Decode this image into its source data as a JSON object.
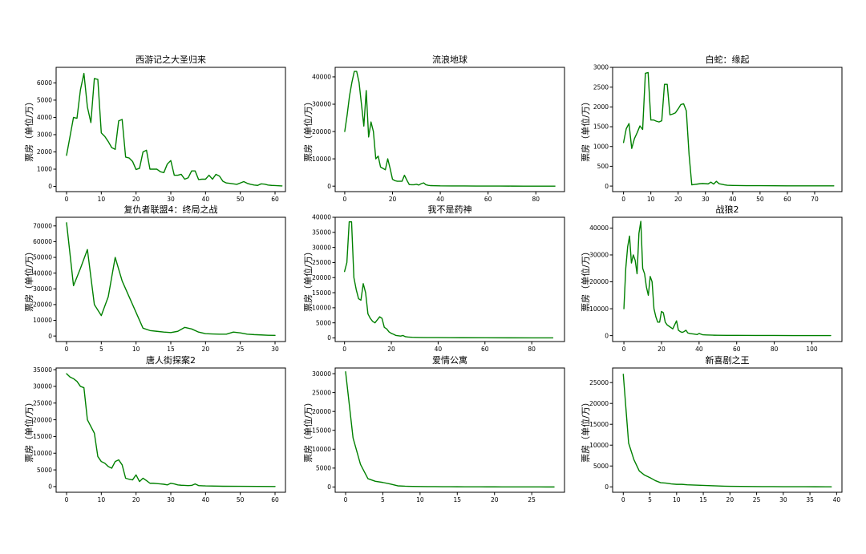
{
  "colors": {
    "line": "#008000",
    "axis": "#000000",
    "background": "#ffffff"
  },
  "chart_data": [
    {
      "type": "line",
      "title": "西游记之大圣归来",
      "ylabel": "票房（单位/万）",
      "xlabel": "",
      "xlim": [
        -3,
        63
      ],
      "ylim": [
        -300,
        6900
      ],
      "xticks": [
        0,
        10,
        20,
        30,
        40,
        50,
        60
      ],
      "yticks": [
        0,
        1000,
        2000,
        3000,
        4000,
        5000,
        6000
      ],
      "series": [
        {
          "x": [
            0,
            1,
            2,
            3,
            4,
            5,
            6,
            7,
            8,
            9,
            10,
            11,
            12,
            13,
            14,
            15,
            16,
            17,
            18,
            19,
            20,
            21,
            22,
            23,
            24,
            25,
            26,
            27,
            28,
            29,
            30,
            31,
            32,
            33,
            34,
            35,
            36,
            37,
            38,
            39,
            40,
            41,
            42,
            43,
            44,
            45,
            46,
            47,
            48,
            49,
            50,
            51,
            52,
            53,
            54,
            55,
            56,
            57,
            58,
            59,
            60,
            61,
            62
          ],
          "y": [
            1800,
            2900,
            4000,
            3950,
            5600,
            6550,
            4600,
            3700,
            6250,
            6200,
            3100,
            2900,
            2600,
            2250,
            2150,
            3800,
            3880,
            1700,
            1650,
            1450,
            980,
            1050,
            2000,
            2100,
            1000,
            1000,
            1000,
            850,
            800,
            1300,
            1500,
            650,
            650,
            700,
            420,
            500,
            900,
            900,
            400,
            420,
            420,
            650,
            420,
            700,
            600,
            300,
            200,
            180,
            150,
            120,
            200,
            280,
            180,
            120,
            80,
            60,
            150,
            130,
            80,
            60,
            50,
            40,
            30
          ]
        }
      ]
    },
    {
      "type": "line",
      "title": "流浪地球",
      "ylabel": "票房（单位/万）",
      "xlabel": "",
      "xlim": [
        -4,
        92
      ],
      "ylim": [
        -2000,
        43500
      ],
      "xticks": [
        0,
        20,
        40,
        60,
        80
      ],
      "yticks": [
        0,
        10000,
        20000,
        30000,
        40000
      ],
      "series": [
        {
          "x": [
            0,
            1,
            2,
            3,
            4,
            5,
            6,
            7,
            8,
            9,
            10,
            11,
            12,
            13,
            14,
            15,
            16,
            17,
            18,
            19,
            20,
            21,
            22,
            23,
            24,
            25,
            26,
            27,
            28,
            29,
            30,
            31,
            32,
            33,
            34,
            35,
            36,
            38,
            40,
            45,
            50,
            55,
            60,
            65,
            70,
            75,
            80,
            85,
            88
          ],
          "y": [
            20000,
            26000,
            33000,
            38000,
            42000,
            42000,
            38000,
            30000,
            22000,
            35000,
            18000,
            23500,
            20000,
            10000,
            11000,
            7000,
            6500,
            6000,
            10000,
            6500,
            2500,
            2000,
            1800,
            1800,
            1800,
            4000,
            2200,
            600,
            500,
            500,
            700,
            400,
            900,
            1200,
            500,
            300,
            200,
            150,
            100,
            80,
            60,
            50,
            40,
            30,
            20,
            15,
            10,
            8,
            5
          ]
        }
      ]
    },
    {
      "type": "line",
      "title": "白蛇：缘起",
      "ylabel": "票房（单位/万）",
      "xlabel": "",
      "xlim": [
        -4,
        80
      ],
      "ylim": [
        -140,
        3000
      ],
      "xticks": [
        0,
        10,
        20,
        30,
        40,
        50,
        60,
        70
      ],
      "yticks": [
        0,
        500,
        1000,
        1500,
        2000,
        2500,
        3000
      ],
      "series": [
        {
          "x": [
            0,
            1,
            2,
            3,
            4,
            5,
            6,
            7,
            8,
            9,
            10,
            11,
            12,
            13,
            14,
            15,
            16,
            17,
            18,
            19,
            20,
            21,
            22,
            23,
            24,
            25,
            26,
            27,
            28,
            29,
            30,
            31,
            32,
            33,
            34,
            35,
            36,
            37,
            38,
            40,
            45,
            50,
            55,
            60,
            65,
            70,
            75,
            77
          ],
          "y": [
            1100,
            1450,
            1580,
            950,
            1200,
            1350,
            1520,
            1430,
            2850,
            2870,
            1670,
            1670,
            1640,
            1620,
            1650,
            2570,
            2570,
            1800,
            1820,
            1850,
            1950,
            2060,
            2080,
            1900,
            800,
            30,
            40,
            50,
            60,
            65,
            60,
            55,
            100,
            50,
            120,
            60,
            45,
            30,
            20,
            15,
            10,
            10,
            8,
            6,
            5,
            5,
            5,
            5
          ]
        }
      ]
    },
    {
      "type": "line",
      "title": "复仇者联盟4：终局之战",
      "ylabel": "票房（单位/万）",
      "xlabel": "",
      "xlim": [
        -1.5,
        31.5
      ],
      "ylim": [
        -3500,
        75500
      ],
      "xticks": [
        0,
        5,
        10,
        15,
        20,
        25,
        30
      ],
      "yticks": [
        0,
        10000,
        20000,
        30000,
        40000,
        50000,
        60000,
        70000
      ],
      "series": [
        {
          "x": [
            0,
            1,
            2,
            3,
            4,
            5,
            6,
            7,
            8,
            9,
            10,
            11,
            12,
            13,
            14,
            15,
            16,
            17,
            18,
            19,
            20,
            21,
            22,
            23,
            24,
            25,
            26,
            27,
            28,
            29,
            30
          ],
          "y": [
            72000,
            32000,
            43000,
            55000,
            20000,
            13000,
            25000,
            50000,
            35000,
            25000,
            15000,
            5000,
            3500,
            3000,
            2500,
            2200,
            3000,
            5500,
            4500,
            2500,
            1500,
            1300,
            1200,
            1200,
            2500,
            2000,
            1200,
            900,
            700,
            500,
            400
          ]
        }
      ]
    },
    {
      "type": "line",
      "title": "我不是药神",
      "ylabel": "票房（单位/万）",
      "xlabel": "",
      "xlim": [
        -4,
        94
      ],
      "ylim": [
        -1200,
        40000
      ],
      "xticks": [
        0,
        20,
        40,
        60,
        80
      ],
      "yticks": [
        0,
        5000,
        10000,
        15000,
        20000,
        25000,
        30000,
        35000,
        40000
      ],
      "series": [
        {
          "x": [
            0,
            1,
            2,
            3,
            4,
            5,
            6,
            7,
            8,
            9,
            10,
            11,
            12,
            13,
            14,
            15,
            16,
            17,
            18,
            19,
            20,
            21,
            22,
            23,
            24,
            25,
            26,
            27,
            28,
            29,
            30,
            32,
            35,
            40,
            45,
            50,
            60,
            70,
            80,
            89
          ],
          "y": [
            22000,
            25000,
            38500,
            38500,
            20000,
            16000,
            13000,
            12500,
            18000,
            15000,
            8000,
            6500,
            5500,
            5000,
            6000,
            7000,
            6500,
            3500,
            3000,
            2000,
            1500,
            1200,
            800,
            700,
            600,
            800,
            400,
            300,
            250,
            200,
            180,
            150,
            120,
            100,
            80,
            60,
            40,
            30,
            20,
            10
          ]
        }
      ]
    },
    {
      "type": "line",
      "title": "战狼2",
      "ylabel": "票房（单位/万）",
      "xlabel": "",
      "xlim": [
        -6,
        116
      ],
      "ylim": [
        -2200,
        44000
      ],
      "xticks": [
        0,
        20,
        40,
        60,
        80,
        100
      ],
      "yticks": [
        0,
        10000,
        20000,
        30000,
        40000
      ],
      "series": [
        {
          "x": [
            0,
            1,
            2,
            3,
            4,
            5,
            6,
            7,
            8,
            9,
            10,
            11,
            12,
            13,
            14,
            15,
            16,
            17,
            18,
            19,
            20,
            21,
            22,
            23,
            24,
            25,
            26,
            27,
            28,
            29,
            30,
            31,
            32,
            33,
            34,
            35,
            36,
            37,
            38,
            39,
            40,
            42,
            44,
            46,
            48,
            50,
            55,
            60,
            70,
            80,
            90,
            100,
            110
          ],
          "y": [
            10000,
            25000,
            33000,
            37000,
            27000,
            30000,
            28000,
            23000,
            38000,
            42500,
            25000,
            23000,
            18000,
            15000,
            22000,
            20000,
            10000,
            7000,
            5000,
            5000,
            9000,
            8500,
            5000,
            4000,
            3500,
            3000,
            2500,
            4000,
            5500,
            2000,
            1500,
            1200,
            1500,
            2000,
            1000,
            800,
            700,
            600,
            500,
            400,
            800,
            300,
            250,
            200,
            150,
            120,
            100,
            80,
            60,
            40,
            30,
            20,
            10
          ]
        }
      ]
    },
    {
      "type": "line",
      "title": "唐人街探案2",
      "ylabel": "票房（单位/万）",
      "xlabel": "",
      "xlim": [
        -3,
        63
      ],
      "ylim": [
        -1700,
        35500
      ],
      "xticks": [
        0,
        10,
        20,
        30,
        40,
        50,
        60
      ],
      "yticks": [
        0,
        5000,
        10000,
        15000,
        20000,
        25000,
        30000,
        35000
      ],
      "series": [
        {
          "x": [
            0,
            1,
            2,
            3,
            4,
            5,
            6,
            7,
            8,
            9,
            10,
            11,
            12,
            13,
            14,
            15,
            16,
            17,
            18,
            19,
            20,
            21,
            22,
            23,
            24,
            25,
            26,
            27,
            28,
            29,
            30,
            31,
            32,
            33,
            34,
            35,
            36,
            37,
            38,
            40,
            45,
            50,
            55,
            60
          ],
          "y": [
            33800,
            32800,
            32300,
            31500,
            30000,
            29600,
            20000,
            18000,
            16000,
            9000,
            7500,
            7000,
            6000,
            5500,
            7500,
            8000,
            6500,
            2500,
            2200,
            2000,
            3500,
            1500,
            2500,
            1800,
            1000,
            1000,
            900,
            800,
            700,
            500,
            1000,
            800,
            500,
            400,
            350,
            300,
            350,
            800,
            300,
            200,
            100,
            80,
            50,
            30
          ]
        }
      ]
    },
    {
      "type": "line",
      "title": "爱情公寓",
      "ylabel": "票房（单位/万）",
      "xlabel": "",
      "xlim": [
        -1.4,
        29.4
      ],
      "ylim": [
        -1400,
        31500
      ],
      "xticks": [
        0,
        5,
        10,
        15,
        20,
        25
      ],
      "yticks": [
        0,
        5000,
        10000,
        15000,
        20000,
        25000,
        30000
      ],
      "series": [
        {
          "x": [
            0,
            1,
            2,
            3,
            4,
            5,
            6,
            7,
            8,
            9,
            10,
            11,
            12,
            13,
            14,
            15,
            16,
            17,
            18,
            19,
            20,
            21,
            22,
            23,
            24,
            25,
            26,
            27,
            28
          ],
          "y": [
            30500,
            13000,
            6000,
            2200,
            1500,
            1200,
            800,
            300,
            200,
            150,
            120,
            100,
            90,
            80,
            70,
            60,
            50,
            45,
            40,
            35,
            30,
            25,
            20,
            18,
            15,
            12,
            10,
            8,
            5
          ]
        }
      ]
    },
    {
      "type": "line",
      "title": "新喜剧之王",
      "ylabel": "票房（单位/万）",
      "xlabel": "",
      "xlim": [
        -2,
        41
      ],
      "ylim": [
        -1300,
        28500
      ],
      "xticks": [
        0,
        5,
        10,
        15,
        20,
        25,
        30,
        35,
        40
      ],
      "yticks": [
        0,
        5000,
        10000,
        15000,
        20000,
        25000
      ],
      "series": [
        {
          "x": [
            0,
            1,
            2,
            3,
            4,
            5,
            6,
            7,
            8,
            9,
            10,
            11,
            12,
            13,
            14,
            15,
            16,
            17,
            18,
            19,
            20,
            22,
            24,
            26,
            28,
            30,
            32,
            34,
            36,
            38,
            39
          ],
          "y": [
            27000,
            10500,
            6500,
            3800,
            2800,
            2200,
            1500,
            1000,
            900,
            700,
            600,
            600,
            500,
            450,
            400,
            350,
            300,
            250,
            200,
            150,
            120,
            100,
            80,
            60,
            50,
            40,
            30,
            25,
            20,
            15,
            10
          ]
        }
      ]
    }
  ]
}
